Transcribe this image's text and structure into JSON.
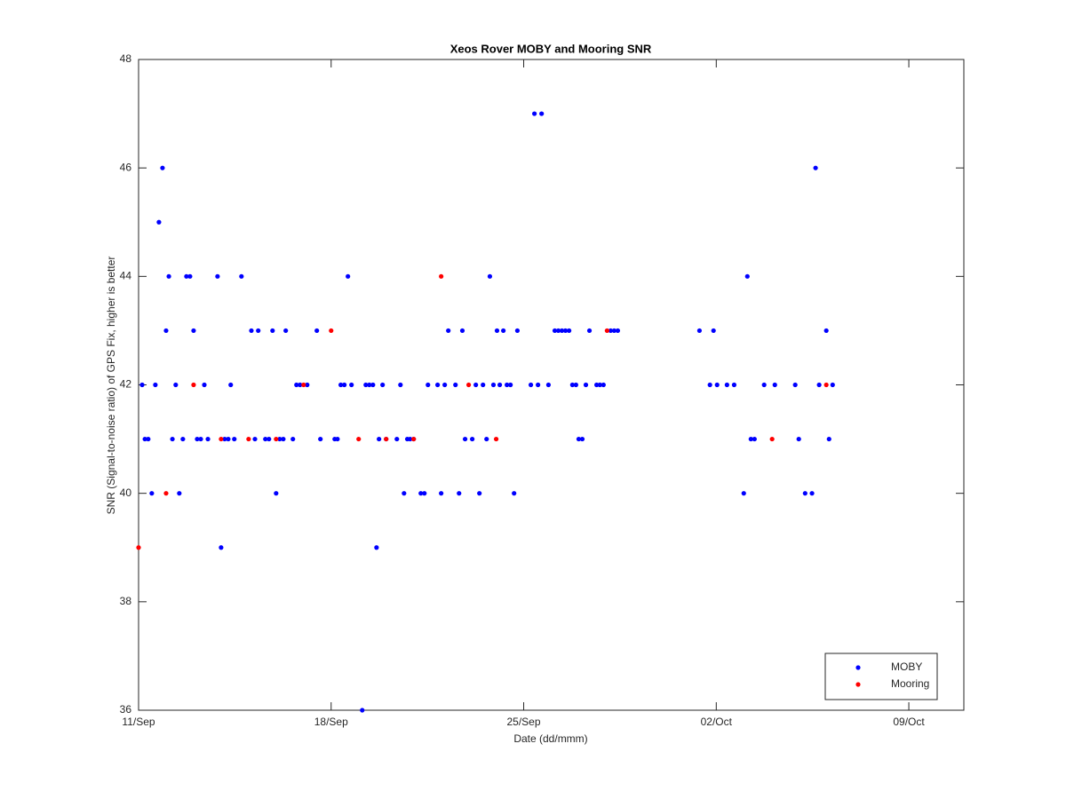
{
  "chart_data": {
    "type": "scatter",
    "title": "Xeos Rover MOBY and Mooring SNR",
    "xlabel": "Date (dd/mmm)",
    "ylabel": "SNR (Signal-to-noise ratio) of GPS Fix, higher is better",
    "xlim": [
      0,
      30
    ],
    "xticks": [
      {
        "value": 0,
        "label": "11/Sep"
      },
      {
        "value": 7,
        "label": "18/Sep"
      },
      {
        "value": 14,
        "label": "25/Sep"
      },
      {
        "value": 21,
        "label": "02/Oct"
      },
      {
        "value": 28,
        "label": "09/Oct"
      }
    ],
    "ylim": [
      36,
      48
    ],
    "yticks": [
      36,
      38,
      40,
      42,
      44,
      46,
      48
    ],
    "legend": "lower right",
    "series": [
      {
        "name": "MOBY",
        "color": "#0000ff",
        "x": [
          0.13,
          0.23,
          0.35,
          0.48,
          0.61,
          0.74,
          0.87,
          1.0,
          1.1,
          1.23,
          1.35,
          1.48,
          1.61,
          1.74,
          1.87,
          2.0,
          2.13,
          2.26,
          2.39,
          2.52,
          2.87,
          3.0,
          3.13,
          3.26,
          3.35,
          3.48,
          3.74,
          4.1,
          4.23,
          4.35,
          4.61,
          4.74,
          4.87,
          5.0,
          5.13,
          5.26,
          5.35,
          5.61,
          5.74,
          5.87,
          6.13,
          6.48,
          6.61,
          7.13,
          7.23,
          7.35,
          7.48,
          7.61,
          7.74,
          8.13,
          8.26,
          8.39,
          8.52,
          8.65,
          8.74,
          8.87,
          9.0,
          9.39,
          9.52,
          9.65,
          9.77,
          9.87,
          10.0,
          10.26,
          10.39,
          10.52,
          10.87,
          11.0,
          11.13,
          11.26,
          11.52,
          11.65,
          11.77,
          11.87,
          12.13,
          12.26,
          12.39,
          12.52,
          12.65,
          12.77,
          12.9,
          13.03,
          13.13,
          13.26,
          13.39,
          13.52,
          13.65,
          13.77,
          14.26,
          14.39,
          14.52,
          14.65,
          14.9,
          15.13,
          15.26,
          15.39,
          15.52,
          15.65,
          15.77,
          15.9,
          16.0,
          16.13,
          16.26,
          16.39,
          16.65,
          16.77,
          16.9,
          17.16,
          17.29,
          17.42,
          20.39,
          20.77,
          20.9,
          21.03,
          21.39,
          21.65,
          22.0,
          22.13,
          22.26,
          22.39,
          22.74,
          23.13,
          23.87,
          24.0,
          24.23,
          24.48,
          24.61,
          24.74,
          25.0,
          25.1,
          25.23
        ],
        "values": [
          42,
          41,
          41,
          40,
          42,
          45,
          46,
          43,
          44,
          41,
          42,
          40,
          41,
          44,
          44,
          43,
          41,
          41,
          42,
          41,
          44,
          39,
          41,
          41,
          42,
          41,
          44,
          43,
          41,
          43,
          41,
          41,
          43,
          40,
          41,
          41,
          43,
          41,
          42,
          42,
          42,
          43,
          41,
          41,
          41,
          42,
          42,
          44,
          42,
          36,
          42,
          42,
          42,
          39,
          41,
          42,
          41,
          41,
          42,
          40,
          41,
          41,
          41,
          40,
          40,
          42,
          42,
          40,
          42,
          43,
          42,
          40,
          43,
          41,
          41,
          42,
          40,
          42,
          41,
          44,
          42,
          43,
          42,
          43,
          42,
          42,
          40,
          43,
          42,
          47,
          42,
          47,
          42,
          43,
          43,
          43,
          43,
          43,
          42,
          42,
          41,
          41,
          42,
          43,
          42,
          42,
          42,
          43,
          43,
          43,
          43,
          42,
          43,
          42,
          42,
          42,
          40,
          44,
          41,
          41,
          42,
          42,
          42,
          41,
          40,
          40,
          46,
          42,
          43,
          41,
          42
        ]
      },
      {
        "name": "Mooring",
        "color": "#ff0000",
        "x": [
          0,
          1.0,
          2.0,
          3.0,
          4.0,
          5.0,
          6.0,
          7.0,
          8.0,
          9.0,
          10.0,
          11.0,
          12.0,
          13.0,
          17.03,
          23.03,
          25.0
        ],
        "values": [
          39,
          40,
          42,
          41,
          41,
          41,
          42,
          43,
          41,
          41,
          41,
          44,
          42,
          41,
          43,
          41,
          42
        ]
      }
    ]
  }
}
